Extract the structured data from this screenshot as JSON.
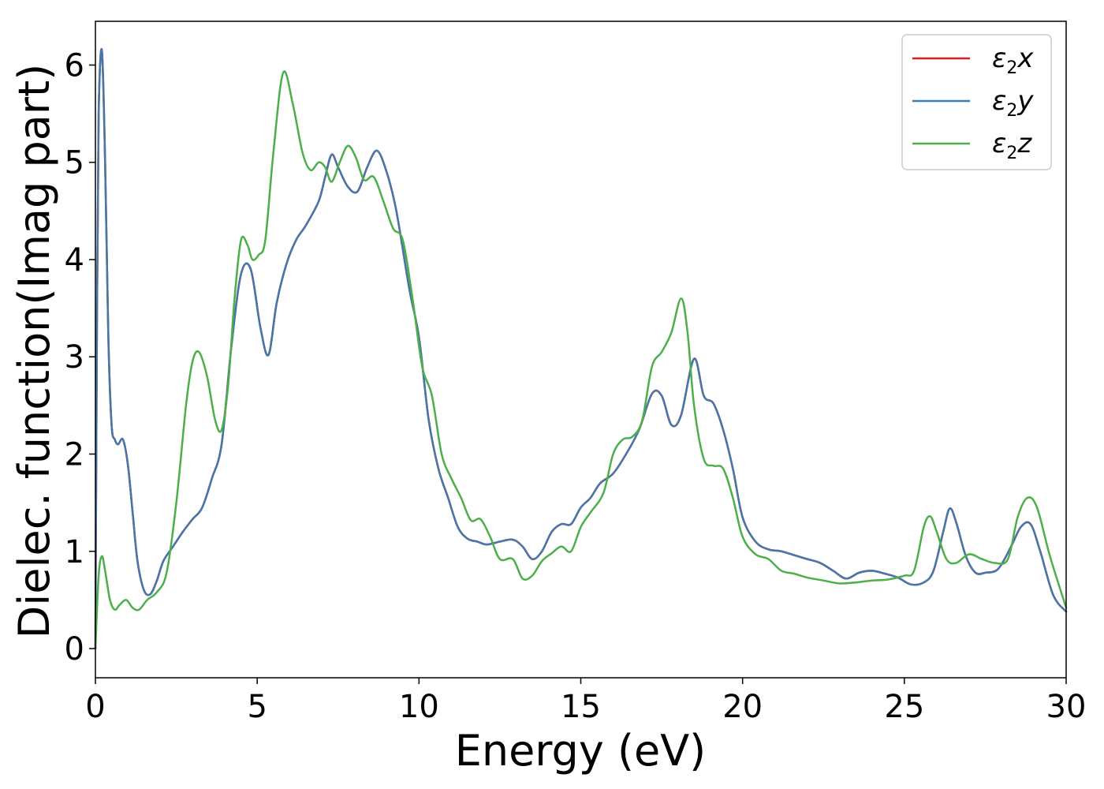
{
  "chart_data": {
    "type": "line",
    "title": "",
    "xlabel": "Energy (eV)",
    "ylabel": "Dielec. function(Imag part)",
    "xlim": [
      0,
      30
    ],
    "ylim": [
      -0.3,
      6.45
    ],
    "xticks": [
      "0",
      "5",
      "10",
      "15",
      "20",
      "25",
      "30"
    ],
    "yticks": [
      "0",
      "1",
      "2",
      "3",
      "4",
      "5",
      "6"
    ],
    "grid": false,
    "legend_position": "top-right",
    "legend": [
      {
        "symbol": "ε",
        "sub": "2",
        "axis": "x",
        "color": "#e41a1c"
      },
      {
        "symbol": "ε",
        "sub": "2",
        "axis": "y",
        "color": "#377eb8"
      },
      {
        "symbol": "ε",
        "sub": "2",
        "axis": "z",
        "color": "#4daf4a"
      }
    ],
    "series": [
      {
        "name": "ε2x",
        "color": "#e41a1c",
        "x": [
          0,
          0.05,
          0.1,
          0.2,
          0.3,
          0.4,
          0.5,
          0.6,
          0.7,
          0.85,
          1.0,
          1.15,
          1.3,
          1.5,
          1.7,
          1.9,
          2.1,
          2.4,
          2.7,
          3.0,
          3.3,
          3.6,
          3.9,
          4.2,
          4.5,
          4.8,
          5.1,
          5.35,
          5.6,
          5.9,
          6.2,
          6.5,
          6.9,
          7.1,
          7.3,
          7.5,
          7.8,
          8.1,
          8.4,
          8.7,
          9.0,
          9.3,
          9.7,
          10.0,
          10.3,
          10.6,
          10.9,
          11.2,
          11.5,
          11.8,
          12.1,
          12.5,
          12.9,
          13.2,
          13.5,
          13.8,
          14.1,
          14.4,
          14.7,
          15.0,
          15.3,
          15.6,
          16.0,
          16.4,
          16.8,
          17.2,
          17.5,
          17.8,
          18.1,
          18.5,
          18.8,
          19.1,
          19.4,
          19.7,
          20.0,
          20.4,
          20.8,
          21.2,
          21.6,
          22.0,
          22.4,
          22.8,
          23.2,
          23.6,
          24.0,
          24.4,
          24.8,
          25.2,
          25.6,
          25.9,
          26.2,
          26.4,
          26.6,
          26.9,
          27.2,
          27.5,
          27.9,
          28.3,
          28.6,
          28.9,
          29.2,
          29.6,
          30.0
        ],
        "y": [
          0,
          3.5,
          5.5,
          6.15,
          5.0,
          3.2,
          2.3,
          2.15,
          2.1,
          2.15,
          1.9,
          1.4,
          0.9,
          0.6,
          0.56,
          0.7,
          0.9,
          1.05,
          1.2,
          1.33,
          1.45,
          1.75,
          2.1,
          3.1,
          3.85,
          3.9,
          3.3,
          3.02,
          3.55,
          3.95,
          4.2,
          4.35,
          4.6,
          4.85,
          5.08,
          4.95,
          4.75,
          4.7,
          4.95,
          5.12,
          4.9,
          4.5,
          3.7,
          3.2,
          2.35,
          1.85,
          1.55,
          1.25,
          1.13,
          1.1,
          1.07,
          1.1,
          1.12,
          1.05,
          0.92,
          1.0,
          1.2,
          1.28,
          1.28,
          1.45,
          1.55,
          1.7,
          1.8,
          2.0,
          2.25,
          2.62,
          2.6,
          2.3,
          2.4,
          2.98,
          2.6,
          2.52,
          2.25,
          1.85,
          1.35,
          1.1,
          1.02,
          1.0,
          0.96,
          0.92,
          0.88,
          0.8,
          0.72,
          0.78,
          0.8,
          0.77,
          0.73,
          0.66,
          0.68,
          0.8,
          1.2,
          1.44,
          1.3,
          0.95,
          0.78,
          0.78,
          0.82,
          1.05,
          1.25,
          1.28,
          1.0,
          0.55,
          0.38
        ]
      },
      {
        "name": "ε2y",
        "color": "#4477aa",
        "x": [
          0,
          0.05,
          0.1,
          0.2,
          0.3,
          0.4,
          0.5,
          0.6,
          0.7,
          0.85,
          1.0,
          1.15,
          1.3,
          1.5,
          1.7,
          1.9,
          2.1,
          2.4,
          2.7,
          3.0,
          3.3,
          3.6,
          3.9,
          4.2,
          4.5,
          4.8,
          5.1,
          5.35,
          5.6,
          5.9,
          6.2,
          6.5,
          6.9,
          7.1,
          7.3,
          7.5,
          7.8,
          8.1,
          8.4,
          8.7,
          9.0,
          9.3,
          9.7,
          10.0,
          10.3,
          10.6,
          10.9,
          11.2,
          11.5,
          11.8,
          12.1,
          12.5,
          12.9,
          13.2,
          13.5,
          13.8,
          14.1,
          14.4,
          14.7,
          15.0,
          15.3,
          15.6,
          16.0,
          16.4,
          16.8,
          17.2,
          17.5,
          17.8,
          18.1,
          18.5,
          18.8,
          19.1,
          19.4,
          19.7,
          20.0,
          20.4,
          20.8,
          21.2,
          21.6,
          22.0,
          22.4,
          22.8,
          23.2,
          23.6,
          24.0,
          24.4,
          24.8,
          25.2,
          25.6,
          25.9,
          26.2,
          26.4,
          26.6,
          26.9,
          27.2,
          27.5,
          27.9,
          28.3,
          28.6,
          28.9,
          29.2,
          29.6,
          30.0
        ],
        "y": [
          0,
          3.5,
          5.5,
          6.15,
          5.0,
          3.2,
          2.3,
          2.15,
          2.1,
          2.15,
          1.9,
          1.4,
          0.9,
          0.6,
          0.56,
          0.7,
          0.9,
          1.05,
          1.2,
          1.33,
          1.45,
          1.75,
          2.1,
          3.1,
          3.85,
          3.9,
          3.3,
          3.02,
          3.55,
          3.95,
          4.2,
          4.35,
          4.6,
          4.85,
          5.08,
          4.95,
          4.75,
          4.7,
          4.95,
          5.12,
          4.9,
          4.5,
          3.7,
          3.2,
          2.35,
          1.85,
          1.55,
          1.25,
          1.13,
          1.1,
          1.07,
          1.1,
          1.12,
          1.05,
          0.92,
          1.0,
          1.2,
          1.28,
          1.28,
          1.45,
          1.55,
          1.7,
          1.8,
          2.0,
          2.25,
          2.62,
          2.6,
          2.3,
          2.4,
          2.98,
          2.6,
          2.52,
          2.25,
          1.85,
          1.35,
          1.1,
          1.02,
          1.0,
          0.96,
          0.92,
          0.88,
          0.8,
          0.72,
          0.78,
          0.8,
          0.77,
          0.73,
          0.66,
          0.68,
          0.8,
          1.2,
          1.44,
          1.3,
          0.95,
          0.78,
          0.78,
          0.82,
          1.05,
          1.25,
          1.28,
          1.0,
          0.55,
          0.38
        ]
      },
      {
        "name": "ε2z",
        "color": "#4daf4a",
        "x": [
          0,
          0.1,
          0.2,
          0.3,
          0.45,
          0.6,
          0.75,
          0.95,
          1.15,
          1.35,
          1.6,
          1.9,
          2.2,
          2.5,
          2.8,
          3.0,
          3.2,
          3.45,
          3.7,
          3.9,
          4.1,
          4.3,
          4.5,
          4.7,
          4.85,
          5.05,
          5.25,
          5.5,
          5.8,
          6.1,
          6.4,
          6.65,
          6.9,
          7.1,
          7.3,
          7.55,
          7.8,
          8.05,
          8.3,
          8.6,
          8.9,
          9.2,
          9.5,
          9.8,
          10.1,
          10.4,
          10.7,
          11.0,
          11.3,
          11.6,
          11.9,
          12.2,
          12.5,
          12.9,
          13.2,
          13.5,
          13.8,
          14.1,
          14.4,
          14.7,
          15.0,
          15.3,
          15.7,
          16.0,
          16.3,
          16.6,
          16.9,
          17.2,
          17.5,
          17.8,
          18.1,
          18.3,
          18.5,
          18.8,
          19.1,
          19.4,
          19.7,
          20.0,
          20.4,
          20.8,
          21.2,
          21.6,
          22.0,
          22.5,
          23.0,
          23.5,
          24.0,
          24.5,
          25.0,
          25.3,
          25.6,
          25.8,
          26.0,
          26.3,
          26.6,
          27.0,
          27.4,
          27.8,
          28.2,
          28.5,
          28.8,
          29.1,
          29.5,
          30.0
        ],
        "y": [
          0,
          0.75,
          0.95,
          0.8,
          0.5,
          0.4,
          0.45,
          0.5,
          0.42,
          0.4,
          0.5,
          0.58,
          0.78,
          1.5,
          2.5,
          2.95,
          3.05,
          2.8,
          2.35,
          2.25,
          2.7,
          3.6,
          4.2,
          4.15,
          4.0,
          4.05,
          4.2,
          5.1,
          5.92,
          5.6,
          5.1,
          4.92,
          5.0,
          4.95,
          4.8,
          5.0,
          5.17,
          5.05,
          4.82,
          4.85,
          4.6,
          4.32,
          4.2,
          3.6,
          2.9,
          2.6,
          2.0,
          1.75,
          1.55,
          1.32,
          1.33,
          1.15,
          0.92,
          0.92,
          0.72,
          0.75,
          0.9,
          0.98,
          1.05,
          1.0,
          1.25,
          1.4,
          1.6,
          2.0,
          2.15,
          2.18,
          2.35,
          2.9,
          3.05,
          3.25,
          3.6,
          3.25,
          2.5,
          1.95,
          1.88,
          1.85,
          1.55,
          1.15,
          0.97,
          0.92,
          0.8,
          0.77,
          0.73,
          0.7,
          0.67,
          0.68,
          0.7,
          0.71,
          0.75,
          0.8,
          1.25,
          1.36,
          1.2,
          0.92,
          0.88,
          0.97,
          0.92,
          0.88,
          0.92,
          1.35,
          1.55,
          1.45,
          0.95,
          0.42
        ]
      }
    ]
  }
}
